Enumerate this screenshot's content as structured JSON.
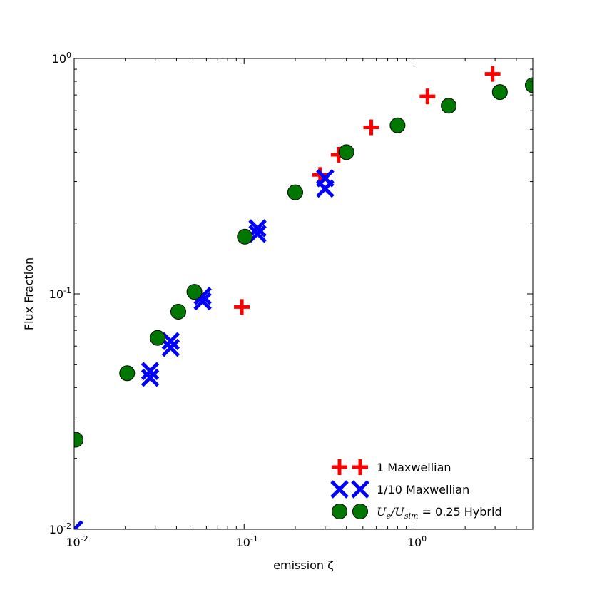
{
  "chart_data": {
    "type": "scatter",
    "title": "",
    "xlabel": "emission ζ",
    "ylabel": "Flux Fraction",
    "xscale": "log",
    "yscale": "log",
    "xlim": [
      0.01,
      5.0
    ],
    "ylim": [
      0.01,
      1.0
    ],
    "grid": false,
    "legend_position": "lower-right",
    "x_tick_labels": [
      {
        "base": "10",
        "exp": "-2",
        "value": 0.01
      },
      {
        "base": "10",
        "exp": "-1",
        "value": 0.1
      },
      {
        "base": "10",
        "exp": "0",
        "value": 1
      }
    ],
    "y_tick_labels": [
      {
        "base": "10",
        "exp": "-2",
        "value": 0.01
      },
      {
        "base": "10",
        "exp": "-1",
        "value": 0.1
      },
      {
        "base": "10",
        "exp": "0",
        "value": 1
      }
    ],
    "series": [
      {
        "name": "1 Maxwellian",
        "marker": "plus",
        "color": "#ff0000",
        "points": [
          {
            "x": 0.097,
            "y": 0.088
          },
          {
            "x": 0.28,
            "y": 0.32
          },
          {
            "x": 0.36,
            "y": 0.39
          },
          {
            "x": 0.56,
            "y": 0.51
          },
          {
            "x": 1.2,
            "y": 0.69
          },
          {
            "x": 2.9,
            "y": 0.86
          }
        ]
      },
      {
        "name": "1/10 Maxwellian",
        "marker": "x",
        "color": "#0000ff",
        "points": [
          {
            "x": 0.01,
            "y": 0.01
          },
          {
            "x": 0.028,
            "y": 0.044
          },
          {
            "x": 0.028,
            "y": 0.047
          },
          {
            "x": 0.037,
            "y": 0.059
          },
          {
            "x": 0.037,
            "y": 0.063
          },
          {
            "x": 0.057,
            "y": 0.093
          },
          {
            "x": 0.057,
            "y": 0.098
          },
          {
            "x": 0.12,
            "y": 0.18
          },
          {
            "x": 0.12,
            "y": 0.19
          },
          {
            "x": 0.3,
            "y": 0.28
          },
          {
            "x": 0.3,
            "y": 0.31
          }
        ]
      },
      {
        "name_parts": {
          "math": "Ue/Usim",
          "text": " = 0.25 Hybrid"
        },
        "marker": "circle",
        "color": "#007700",
        "points": [
          {
            "x": 0.0102,
            "y": 0.024
          },
          {
            "x": 0.0205,
            "y": 0.046
          },
          {
            "x": 0.031,
            "y": 0.065
          },
          {
            "x": 0.041,
            "y": 0.084
          },
          {
            "x": 0.051,
            "y": 0.102
          },
          {
            "x": 0.101,
            "y": 0.175
          },
          {
            "x": 0.2,
            "y": 0.27
          },
          {
            "x": 0.4,
            "y": 0.4
          },
          {
            "x": 0.8,
            "y": 0.52
          },
          {
            "x": 1.6,
            "y": 0.63
          },
          {
            "x": 3.2,
            "y": 0.72
          },
          {
            "x": 5.0,
            "y": 0.77
          }
        ]
      }
    ]
  }
}
